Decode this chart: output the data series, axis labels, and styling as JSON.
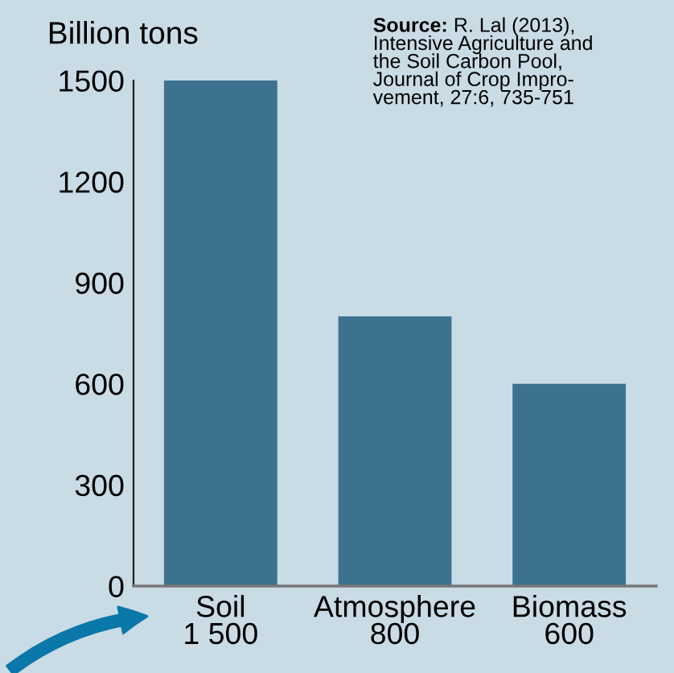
{
  "chart_data": {
    "type": "bar",
    "ylabel": "Billion tons",
    "categories": [
      "Soil",
      "Atmosphere",
      "Biomass"
    ],
    "values": [
      1500,
      800,
      600
    ],
    "color": "#3c7290",
    "value_labels": [
      "1 500",
      "800",
      "600"
    ],
    "ylim": [
      0,
      1500
    ],
    "yticks": [
      0,
      300,
      600,
      900,
      1200,
      1500
    ],
    "grid": false,
    "legend": false,
    "annotations": [
      "Source: R. Lal (2013),\nIntensive Agriculture and\nthe Soil Carbon Pool,\nJournal of Crop Impro-\nvement, 27:6, 735-751"
    ]
  }
}
